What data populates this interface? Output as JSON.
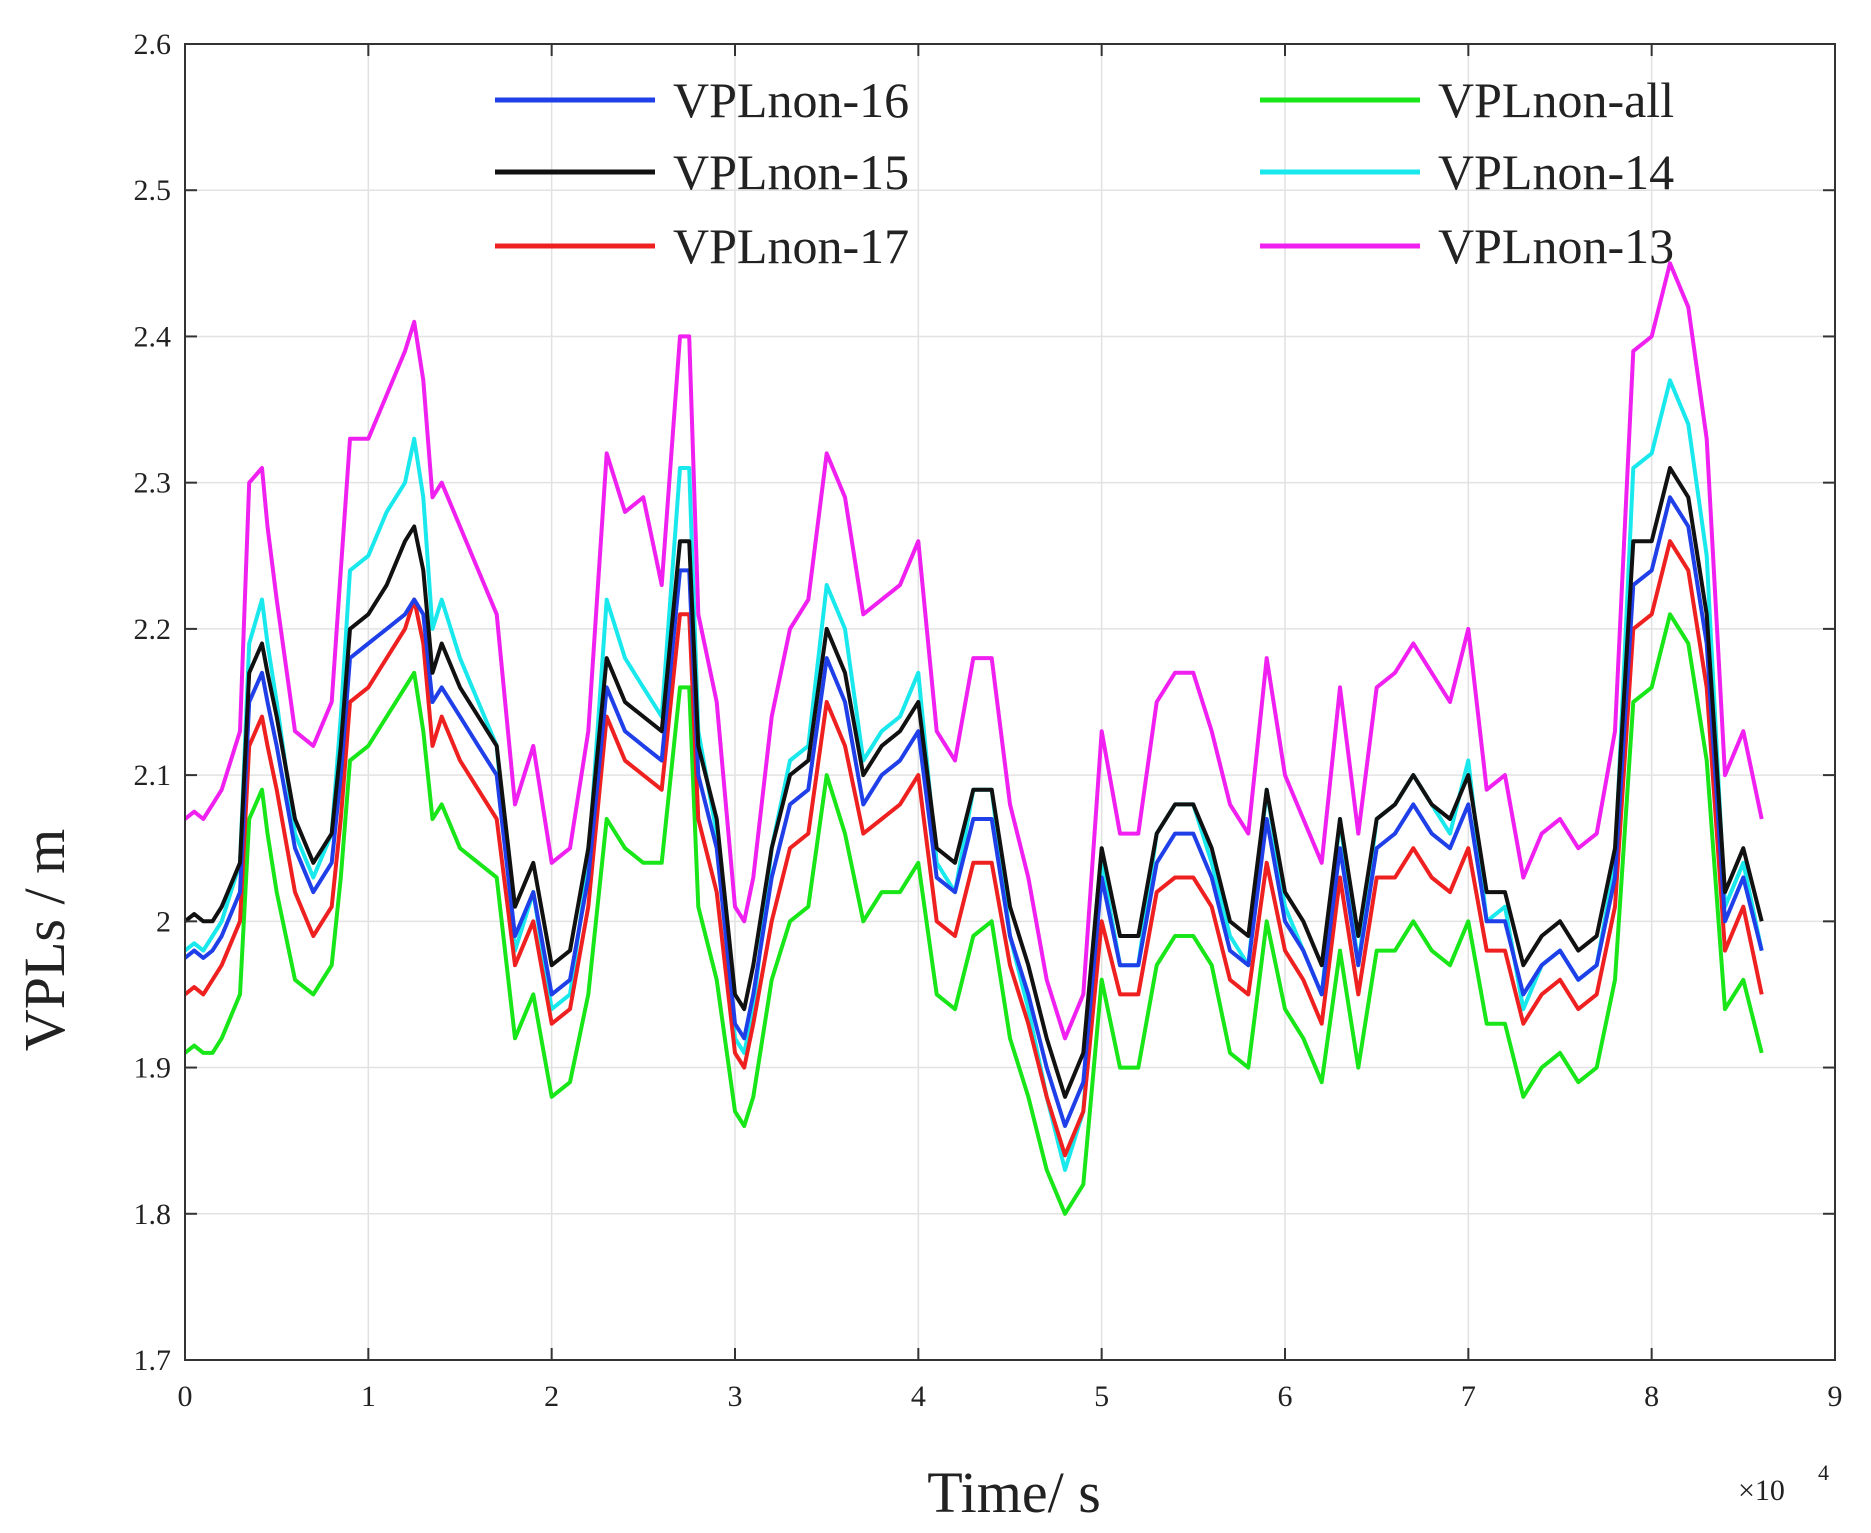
{
  "chart_data": {
    "type": "line",
    "title": "",
    "xlabel": "Time/ s",
    "ylabel": "VPLs / m",
    "x_scale_label": "×10",
    "x_scale_exponent": "4",
    "xlim": [
      0,
      9
    ],
    "ylim": [
      1.7,
      2.6
    ],
    "xticks": [
      "0",
      "1",
      "2",
      "3",
      "4",
      "5",
      "6",
      "7",
      "8",
      "9"
    ],
    "yticks": [
      "1.7",
      "1.8",
      "1.9",
      "2",
      "2.1",
      "2.2",
      "2.3",
      "2.4",
      "2.5",
      "2.6"
    ],
    "grid": true,
    "legend_position": "top",
    "x": [
      0,
      0.05,
      0.1,
      0.15,
      0.2,
      0.3,
      0.35,
      0.42,
      0.45,
      0.5,
      0.6,
      0.7,
      0.8,
      0.85,
      0.9,
      1.0,
      1.1,
      1.2,
      1.25,
      1.3,
      1.35,
      1.4,
      1.5,
      1.6,
      1.7,
      1.8,
      1.9,
      2.0,
      2.1,
      2.2,
      2.3,
      2.4,
      2.5,
      2.6,
      2.7,
      2.75,
      2.8,
      2.9,
      3.0,
      3.05,
      3.1,
      3.2,
      3.3,
      3.4,
      3.5,
      3.6,
      3.7,
      3.8,
      3.9,
      4.0,
      4.1,
      4.2,
      4.3,
      4.4,
      4.5,
      4.6,
      4.7,
      4.8,
      4.9,
      5.0,
      5.1,
      5.2,
      5.3,
      5.4,
      5.5,
      5.6,
      5.7,
      5.8,
      5.9,
      6.0,
      6.1,
      6.2,
      6.3,
      6.4,
      6.5,
      6.6,
      6.7,
      6.8,
      6.9,
      7.0,
      7.1,
      7.2,
      7.3,
      7.4,
      7.5,
      7.6,
      7.7,
      7.8,
      7.9,
      8.0,
      8.1,
      8.2,
      8.3,
      8.4,
      8.5,
      8.6
    ],
    "series": [
      {
        "name": "VPLnon-16",
        "color": "#1f3fe8",
        "values": [
          1.975,
          1.98,
          1.975,
          1.98,
          1.99,
          2.02,
          2.15,
          2.17,
          2.15,
          2.12,
          2.05,
          2.02,
          2.04,
          2.1,
          2.18,
          2.19,
          2.2,
          2.21,
          2.22,
          2.21,
          2.15,
          2.16,
          2.14,
          2.12,
          2.1,
          1.99,
          2.02,
          1.95,
          1.96,
          2.03,
          2.16,
          2.13,
          2.12,
          2.11,
          2.24,
          2.24,
          2.1,
          2.05,
          1.93,
          1.92,
          1.95,
          2.03,
          2.08,
          2.09,
          2.18,
          2.15,
          2.08,
          2.1,
          2.11,
          2.13,
          2.03,
          2.02,
          2.07,
          2.07,
          1.99,
          1.95,
          1.9,
          1.86,
          1.89,
          2.03,
          1.97,
          1.97,
          2.04,
          2.06,
          2.06,
          2.03,
          1.98,
          1.97,
          2.07,
          2.0,
          1.98,
          1.95,
          2.05,
          1.97,
          2.05,
          2.06,
          2.08,
          2.06,
          2.05,
          2.08,
          2.0,
          2.0,
          1.95,
          1.97,
          1.98,
          1.96,
          1.97,
          2.03,
          2.23,
          2.24,
          2.29,
          2.27,
          2.19,
          2.0,
          2.03,
          1.98
        ]
      },
      {
        "name": "VPLnon-15",
        "color": "#111111",
        "values": [
          2.0,
          2.005,
          2.0,
          2.0,
          2.01,
          2.04,
          2.17,
          2.19,
          2.17,
          2.14,
          2.07,
          2.04,
          2.06,
          2.12,
          2.2,
          2.21,
          2.23,
          2.26,
          2.27,
          2.24,
          2.17,
          2.19,
          2.16,
          2.14,
          2.12,
          2.01,
          2.04,
          1.97,
          1.98,
          2.05,
          2.18,
          2.15,
          2.14,
          2.13,
          2.26,
          2.26,
          2.12,
          2.07,
          1.95,
          1.94,
          1.97,
          2.05,
          2.1,
          2.11,
          2.2,
          2.17,
          2.1,
          2.12,
          2.13,
          2.15,
          2.05,
          2.04,
          2.09,
          2.09,
          2.01,
          1.97,
          1.92,
          1.88,
          1.91,
          2.05,
          1.99,
          1.99,
          2.06,
          2.08,
          2.08,
          2.05,
          2.0,
          1.99,
          2.09,
          2.02,
          2.0,
          1.97,
          2.07,
          1.99,
          2.07,
          2.08,
          2.1,
          2.08,
          2.07,
          2.1,
          2.02,
          2.02,
          1.97,
          1.99,
          2.0,
          1.98,
          1.99,
          2.05,
          2.26,
          2.26,
          2.31,
          2.29,
          2.21,
          2.02,
          2.05,
          2.0
        ]
      },
      {
        "name": "VPLnon-17",
        "color": "#ef2020",
        "values": [
          1.95,
          1.955,
          1.95,
          1.96,
          1.97,
          2.0,
          2.12,
          2.14,
          2.12,
          2.09,
          2.02,
          1.99,
          2.01,
          2.07,
          2.15,
          2.16,
          2.18,
          2.2,
          2.22,
          2.19,
          2.12,
          2.14,
          2.11,
          2.09,
          2.07,
          1.97,
          2.0,
          1.93,
          1.94,
          2.01,
          2.14,
          2.11,
          2.1,
          2.09,
          2.21,
          2.21,
          2.07,
          2.02,
          1.91,
          1.9,
          1.93,
          2.0,
          2.05,
          2.06,
          2.15,
          2.12,
          2.06,
          2.07,
          2.08,
          2.1,
          2.0,
          1.99,
          2.04,
          2.04,
          1.97,
          1.93,
          1.88,
          1.84,
          1.87,
          2.0,
          1.95,
          1.95,
          2.02,
          2.03,
          2.03,
          2.01,
          1.96,
          1.95,
          2.04,
          1.98,
          1.96,
          1.93,
          2.03,
          1.95,
          2.03,
          2.03,
          2.05,
          2.03,
          2.02,
          2.05,
          1.98,
          1.98,
          1.93,
          1.95,
          1.96,
          1.94,
          1.95,
          2.01,
          2.2,
          2.21,
          2.26,
          2.24,
          2.16,
          1.98,
          2.01,
          1.95
        ]
      },
      {
        "name": "VPLnon-all",
        "color": "#18e618",
        "values": [
          1.91,
          1.915,
          1.91,
          1.91,
          1.92,
          1.95,
          2.07,
          2.09,
          2.06,
          2.02,
          1.96,
          1.95,
          1.97,
          2.03,
          2.11,
          2.12,
          2.14,
          2.16,
          2.17,
          2.13,
          2.07,
          2.08,
          2.05,
          2.04,
          2.03,
          1.92,
          1.95,
          1.88,
          1.89,
          1.95,
          2.07,
          2.05,
          2.04,
          2.04,
          2.16,
          2.16,
          2.01,
          1.96,
          1.87,
          1.86,
          1.88,
          1.96,
          2.0,
          2.01,
          2.1,
          2.06,
          2.0,
          2.02,
          2.02,
          2.04,
          1.95,
          1.94,
          1.99,
          2.0,
          1.92,
          1.88,
          1.83,
          1.8,
          1.82,
          1.96,
          1.9,
          1.9,
          1.97,
          1.99,
          1.99,
          1.97,
          1.91,
          1.9,
          2.0,
          1.94,
          1.92,
          1.89,
          1.98,
          1.9,
          1.98,
          1.98,
          2.0,
          1.98,
          1.97,
          2.0,
          1.93,
          1.93,
          1.88,
          1.9,
          1.91,
          1.89,
          1.9,
          1.96,
          2.15,
          2.16,
          2.21,
          2.19,
          2.11,
          1.94,
          1.96,
          1.91
        ]
      },
      {
        "name": "VPLnon-14",
        "color": "#19e8ec",
        "values": [
          1.98,
          1.985,
          1.98,
          1.99,
          2.0,
          2.04,
          2.19,
          2.22,
          2.19,
          2.15,
          2.06,
          2.03,
          2.06,
          2.14,
          2.24,
          2.25,
          2.28,
          2.3,
          2.33,
          2.29,
          2.2,
          2.22,
          2.18,
          2.15,
          2.12,
          1.98,
          2.02,
          1.94,
          1.95,
          2.04,
          2.22,
          2.18,
          2.16,
          2.14,
          2.31,
          2.31,
          2.13,
          2.06,
          1.92,
          1.91,
          1.94,
          2.05,
          2.11,
          2.12,
          2.23,
          2.2,
          2.11,
          2.13,
          2.14,
          2.17,
          2.04,
          2.02,
          2.09,
          2.09,
          1.99,
          1.94,
          1.88,
          1.83,
          1.87,
          2.04,
          1.97,
          1.97,
          2.06,
          2.08,
          2.08,
          2.04,
          1.99,
          1.97,
          2.09,
          2.01,
          1.98,
          1.95,
          2.07,
          1.97,
          2.07,
          2.08,
          2.1,
          2.08,
          2.06,
          2.11,
          2.0,
          2.01,
          1.94,
          1.97,
          1.98,
          1.96,
          1.97,
          2.04,
          2.31,
          2.32,
          2.37,
          2.34,
          2.25,
          2.01,
          2.04,
          1.98
        ]
      },
      {
        "name": "VPLnon-13",
        "color": "#f020f0",
        "values": [
          2.07,
          2.075,
          2.07,
          2.08,
          2.09,
          2.13,
          2.3,
          2.31,
          2.27,
          2.22,
          2.13,
          2.12,
          2.15,
          2.24,
          2.33,
          2.33,
          2.36,
          2.39,
          2.41,
          2.37,
          2.29,
          2.3,
          2.27,
          2.24,
          2.21,
          2.08,
          2.12,
          2.04,
          2.05,
          2.13,
          2.32,
          2.28,
          2.29,
          2.23,
          2.4,
          2.4,
          2.21,
          2.15,
          2.01,
          2.0,
          2.03,
          2.14,
          2.2,
          2.22,
          2.32,
          2.29,
          2.21,
          2.22,
          2.23,
          2.26,
          2.13,
          2.11,
          2.18,
          2.18,
          2.08,
          2.03,
          1.96,
          1.92,
          1.95,
          2.13,
          2.06,
          2.06,
          2.15,
          2.17,
          2.17,
          2.13,
          2.08,
          2.06,
          2.18,
          2.1,
          2.07,
          2.04,
          2.16,
          2.06,
          2.16,
          2.17,
          2.19,
          2.17,
          2.15,
          2.2,
          2.09,
          2.1,
          2.03,
          2.06,
          2.07,
          2.05,
          2.06,
          2.13,
          2.39,
          2.4,
          2.45,
          2.42,
          2.33,
          2.1,
          2.13,
          2.07
        ]
      }
    ]
  }
}
